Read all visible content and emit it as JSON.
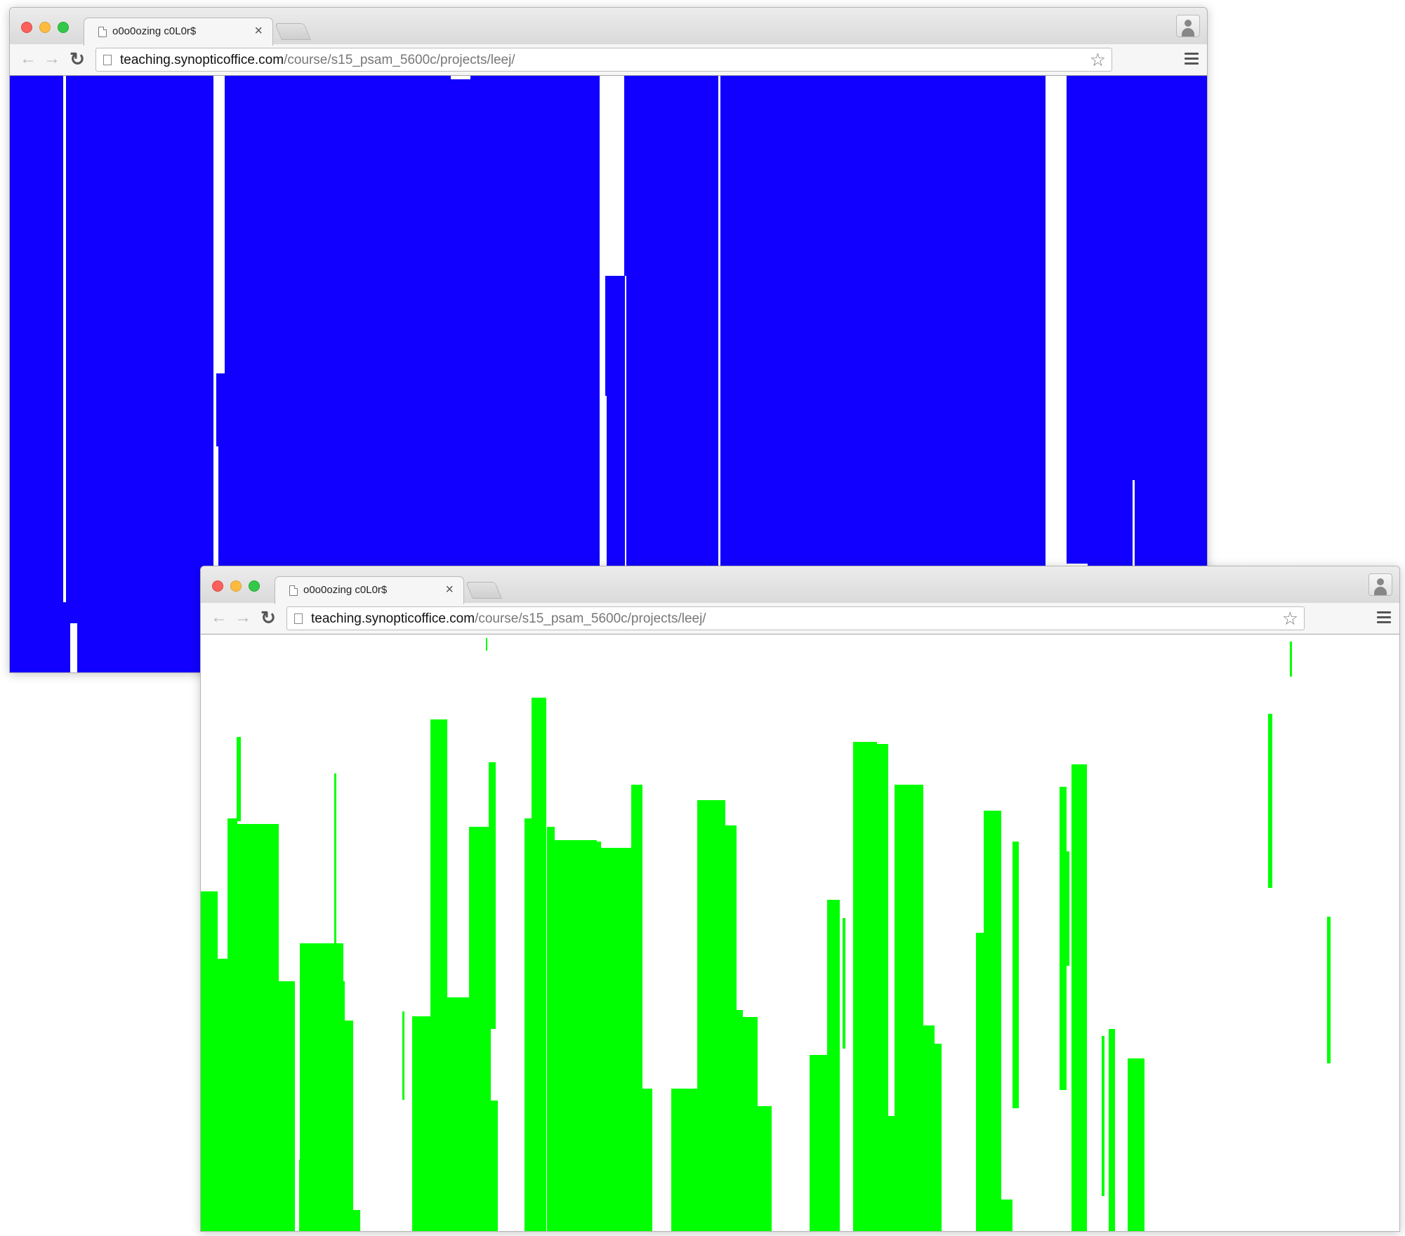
{
  "windows": [
    {
      "tab_title": "o0o0ozing c0L0r$",
      "url_host": "teaching.synopticoffice.com",
      "url_path": "/course/s15_psam_5600c/projects/leej/",
      "background_color": "#1100ff",
      "stripe_color": "#ffffff"
    },
    {
      "tab_title": "o0o0ozing c0L0r$",
      "url_host": "teaching.synopticoffice.com",
      "url_path": "/course/s15_psam_5600c/projects/leej/",
      "background_color": "#ffffff",
      "bar_color": "#00ff00"
    }
  ],
  "icons": [
    "close-icon",
    "back-arrow-icon",
    "forward-arrow-icon",
    "reload-icon",
    "page-icon",
    "star-icon",
    "menu-icon",
    "profile-icon"
  ]
}
